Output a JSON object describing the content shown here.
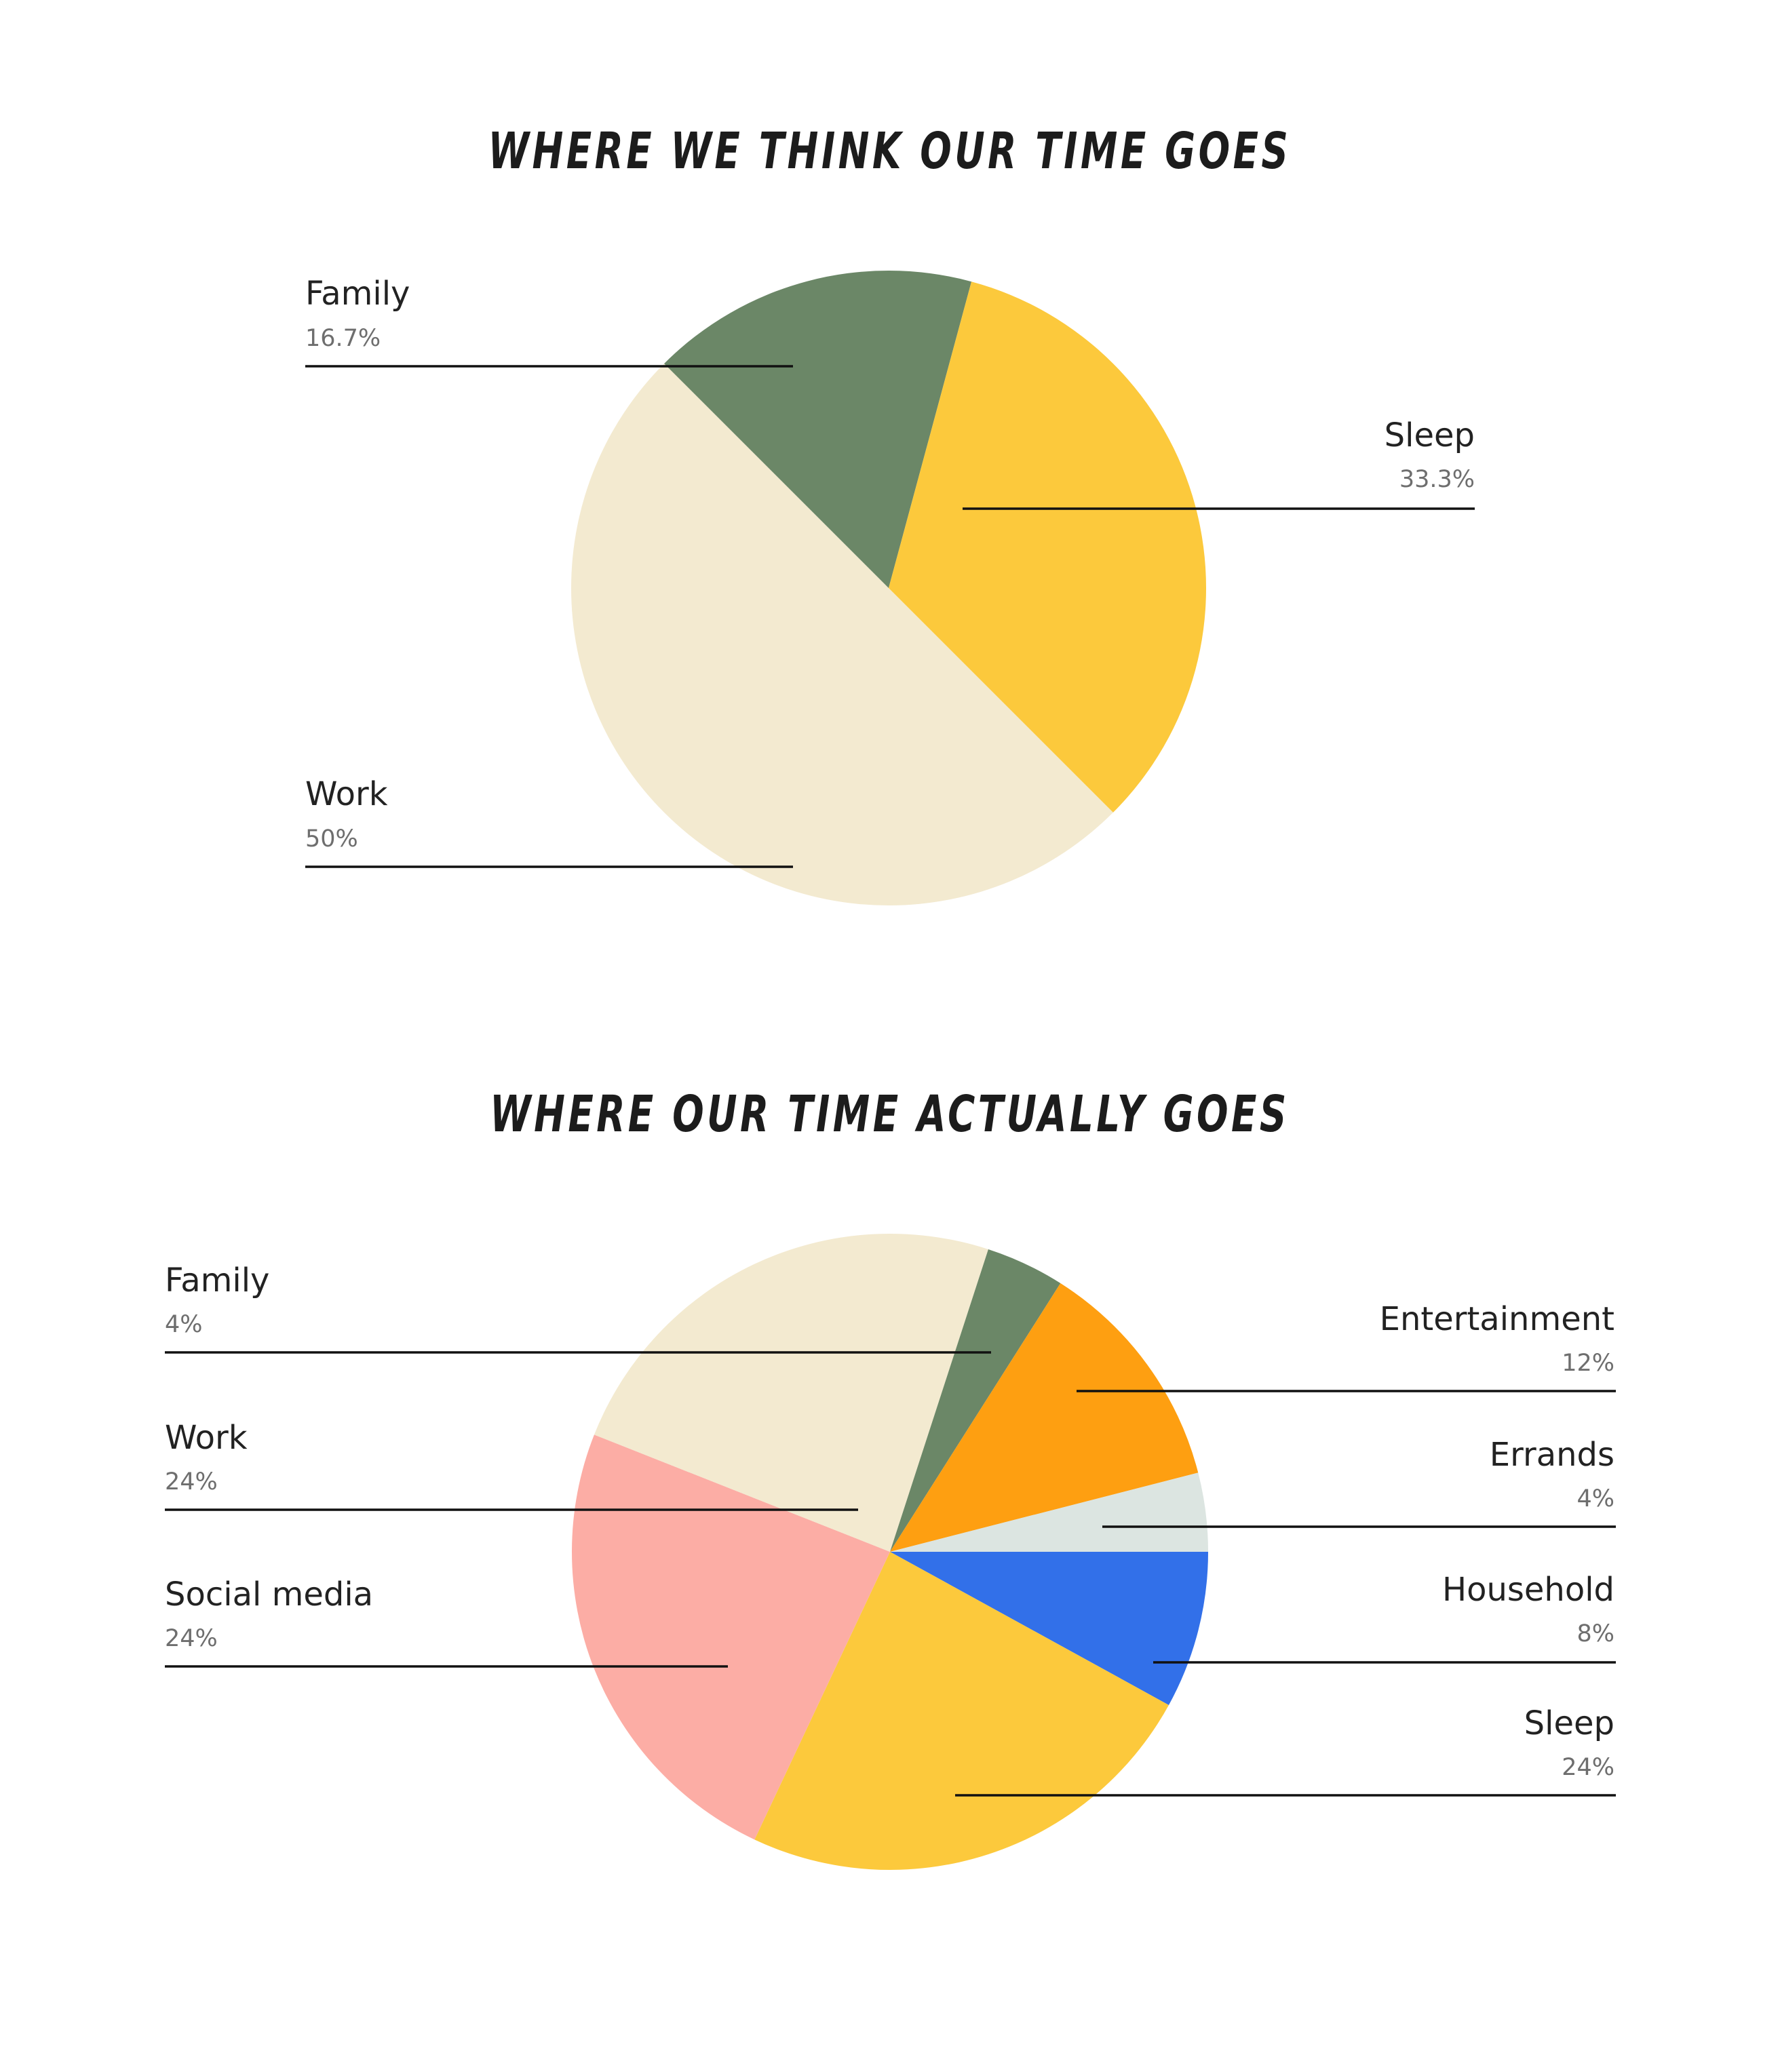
{
  "charts": [
    {
      "title": "WHERE WE THINK OUR TIME GOES",
      "slices": [
        {
          "label": "Work",
          "percent_text": "50%",
          "value": 50,
          "color": "#F3EAD0"
        },
        {
          "label": "Family",
          "percent_text": "16.7%",
          "value": 16.7,
          "color": "#6B8767"
        },
        {
          "label": "Sleep",
          "percent_text": "33.3%",
          "value": 33.3,
          "color": "#FCC93C"
        }
      ]
    },
    {
      "title": "WHERE OUR TIME ACTUALLY GOES",
      "slices": [
        {
          "label": "Household",
          "percent_text": "8%",
          "value": 8,
          "color": "#3270E9"
        },
        {
          "label": "Sleep",
          "percent_text": "24%",
          "value": 24,
          "color": "#FCC93C"
        },
        {
          "label": "Social media",
          "percent_text": "24%",
          "value": 24,
          "color": "#FCADA5"
        },
        {
          "label": "Work",
          "percent_text": "24%",
          "value": 24,
          "color": "#F3EAD0"
        },
        {
          "label": "Family",
          "percent_text": "4%",
          "value": 4,
          "color": "#6B8767"
        },
        {
          "label": "Entertainment",
          "percent_text": "12%",
          "value": 12,
          "color": "#FE9F11"
        },
        {
          "label": "Errands",
          "percent_text": "4%",
          "value": 4,
          "color": "#DCE5E1"
        }
      ]
    }
  ],
  "chart_data": [
    {
      "type": "pie",
      "title": "WHERE WE THINK OUR TIME GOES",
      "categories": [
        "Work",
        "Family",
        "Sleep"
      ],
      "values": [
        50,
        16.7,
        33.3
      ],
      "unit": "%",
      "colors": [
        "#F3EAD0",
        "#6B8767",
        "#FCC93C"
      ],
      "legend": "callout labels with leader lines"
    },
    {
      "type": "pie",
      "title": "WHERE OUR TIME ACTUALLY GOES",
      "categories": [
        "Household",
        "Sleep",
        "Social media",
        "Work",
        "Family",
        "Entertainment",
        "Errands"
      ],
      "values": [
        8,
        24,
        24,
        24,
        4,
        12,
        4
      ],
      "unit": "%",
      "colors": [
        "#3270E9",
        "#FCC93C",
        "#FCADA5",
        "#F3EAD0",
        "#6B8767",
        "#FE9F11",
        "#DCE5E1"
      ],
      "legend": "callout labels with leader lines"
    }
  ]
}
